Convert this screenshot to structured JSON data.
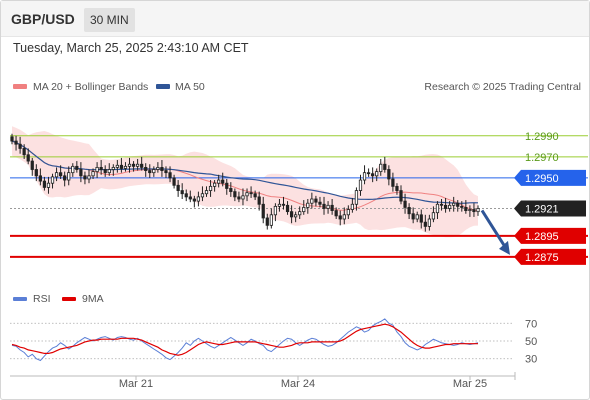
{
  "header": {
    "symbol": "GBP/USD",
    "timeframe": "30 MIN",
    "datetime": "Tuesday, March 25, 2025 2:43:10 AM CET"
  },
  "price_panel": {
    "legend": [
      {
        "label": "MA 20 + Bollinger Bands",
        "color": "#f08080"
      },
      {
        "label": "MA 50",
        "color": "#2f5597"
      }
    ],
    "credit": "Research © 2025 Trading Central"
  },
  "rsi_panel": {
    "legend": [
      {
        "label": "RSI",
        "color": "#5b7fd6"
      },
      {
        "label": "9MA",
        "color": "#e00000"
      }
    ]
  },
  "chart_data": [
    {
      "type": "candlestick",
      "title": "GBP/USD 30 MIN",
      "ylim": [
        1.2855,
        1.3005
      ],
      "x_labels": [
        "Mar 21",
        "Mar 24",
        "Mar 25"
      ],
      "levels": [
        {
          "value": 1.299,
          "label": "1.2990",
          "kind": "resistance",
          "color": "#9acd32"
        },
        {
          "value": 1.297,
          "label": "1.2970",
          "kind": "resistance",
          "color": "#9acd32"
        },
        {
          "value": 1.295,
          "label": "1.2950",
          "kind": "pivot",
          "color": "#2563eb"
        },
        {
          "value": 1.2921,
          "label": "1.2921",
          "kind": "last-price",
          "color": "#222222"
        },
        {
          "value": 1.2895,
          "label": "1.2895",
          "kind": "support",
          "color": "#e00000"
        },
        {
          "value": 1.2875,
          "label": "1.2875",
          "kind": "support",
          "color": "#e00000"
        }
      ],
      "forecast_arrow": {
        "from": 1.2921,
        "to": 1.2875,
        "direction": "down"
      },
      "closes": [
        1.2985,
        1.2982,
        1.2978,
        1.2972,
        1.2966,
        1.2958,
        1.2952,
        1.2947,
        1.2941,
        1.2945,
        1.2951,
        1.2955,
        1.2952,
        1.2948,
        1.2955,
        1.2961,
        1.2958,
        1.2952,
        1.2949,
        1.2952,
        1.2956,
        1.296,
        1.2958,
        1.2955,
        1.2958,
        1.296,
        1.2962,
        1.2959,
        1.2961,
        1.2963,
        1.2961,
        1.2963,
        1.296,
        1.2957,
        1.2955,
        1.2958,
        1.296,
        1.2957,
        1.2955,
        1.295,
        1.2943,
        1.2938,
        1.2935,
        1.2932,
        1.293,
        1.2928,
        1.2932,
        1.2935,
        1.2938,
        1.2942,
        1.2945,
        1.2948,
        1.2945,
        1.294,
        1.2937,
        1.2932,
        1.293,
        1.2933,
        1.2936,
        1.2935,
        1.2932,
        1.2925,
        1.2912,
        1.2905,
        1.2915,
        1.2923,
        1.2925,
        1.2924,
        1.2918,
        1.2913,
        1.2915,
        1.2918,
        1.2922,
        1.2926,
        1.293,
        1.2927,
        1.2925,
        1.2921,
        1.2924,
        1.2919,
        1.2914,
        1.2911,
        1.2915,
        1.292,
        1.2925,
        1.2938,
        1.2948,
        1.2955,
        1.2954,
        1.2952,
        1.2956,
        1.2963,
        1.2958,
        1.2949,
        1.2942,
        1.2938,
        1.2928,
        1.2922,
        1.2916,
        1.2911,
        1.2915,
        1.2908,
        1.2904,
        1.2911,
        1.2917,
        1.2925,
        1.2924,
        1.2921,
        1.2924,
        1.2926,
        1.2923,
        1.2922,
        1.2919,
        1.292,
        1.2918,
        1.2921
      ]
    },
    {
      "type": "line",
      "title": "RSI",
      "ylim": [
        15,
        85
      ],
      "y_ticks": [
        30,
        50,
        70
      ],
      "series": [
        {
          "name": "RSI",
          "values": [
            45,
            44,
            40,
            37,
            32,
            35,
            30,
            28,
            33,
            38,
            42,
            44,
            48,
            45,
            41,
            44,
            48,
            51,
            54,
            52,
            50,
            52,
            54,
            55,
            53,
            51,
            54,
            55,
            54,
            52,
            51,
            53,
            50,
            47,
            44,
            41,
            38,
            35,
            31,
            29,
            33,
            37,
            42,
            48,
            45,
            50,
            53,
            50,
            47,
            44,
            42,
            45,
            48,
            51,
            54,
            51,
            48,
            45,
            48,
            52,
            50,
            47,
            45,
            40,
            38,
            42,
            46,
            50,
            53,
            52,
            48,
            45,
            48,
            51,
            53,
            52,
            49,
            46,
            44,
            45,
            48,
            52,
            56,
            60,
            63,
            66,
            64,
            60,
            62,
            67,
            70,
            72,
            75,
            70,
            68,
            60,
            55,
            48,
            44,
            42,
            40,
            42,
            46,
            49,
            52,
            50,
            48,
            47,
            46,
            45,
            46,
            48,
            47,
            46,
            47,
            48
          ]
        },
        {
          "name": "9MA",
          "values": [
            46,
            45,
            43,
            42,
            40,
            39,
            38,
            37,
            36,
            36,
            37,
            39,
            41,
            42,
            43,
            44,
            45,
            47,
            49,
            50,
            51,
            51,
            52,
            52,
            52,
            52,
            52,
            53,
            53,
            53,
            53,
            52,
            51,
            49,
            47,
            45,
            43,
            40,
            38,
            36,
            35,
            34,
            35,
            37,
            40,
            43,
            46,
            48,
            49,
            48,
            47,
            46,
            46,
            47,
            48,
            49,
            49,
            49,
            49,
            49,
            49,
            48,
            47,
            46,
            45,
            44,
            43,
            43,
            44,
            45,
            47,
            48,
            48,
            48,
            49,
            49,
            49,
            49,
            49,
            49,
            49,
            50,
            52,
            55,
            58,
            61,
            63,
            64,
            65,
            66,
            67,
            68,
            69,
            68,
            66,
            63,
            60,
            56,
            52,
            48,
            45,
            43,
            42,
            42,
            43,
            44,
            45,
            46,
            46,
            47,
            47,
            47,
            47,
            47,
            47,
            47
          ]
        }
      ]
    }
  ]
}
